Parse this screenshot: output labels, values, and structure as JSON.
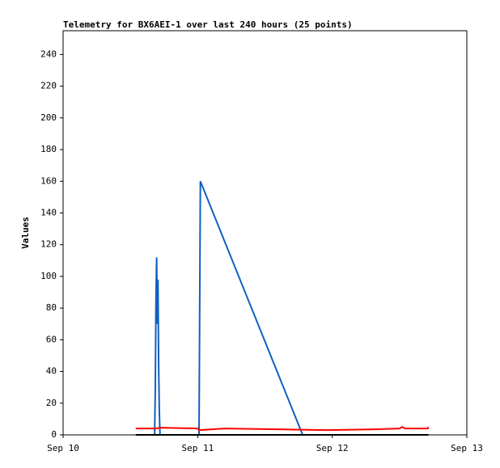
{
  "chart_data": {
    "type": "line",
    "title": "Telemetry for BX6AEI-1 over last 240 hours (25 points)",
    "y_label": "Values",
    "xlim": [
      0,
      3
    ],
    "xticks": [
      {
        "value": 0,
        "label": "Sep 10"
      },
      {
        "value": 1,
        "label": "Sep 11"
      },
      {
        "value": 2,
        "label": "Sep 12"
      },
      {
        "value": 3,
        "label": "Sep 13"
      }
    ],
    "ylim": [
      0,
      255
    ],
    "yticks": [
      0,
      20,
      40,
      60,
      80,
      100,
      120,
      140,
      160,
      180,
      200,
      220,
      240
    ],
    "grid": false,
    "series": [
      {
        "color": "#1060c0",
        "x": [
          0.68,
          0.685,
          0.69,
          0.695,
          0.7,
          0.705,
          0.71,
          0.715,
          0.72,
          1.0,
          1.01,
          1.02,
          1.78
        ],
        "values": [
          0,
          28,
          85,
          112,
          70,
          98,
          43,
          15,
          0,
          0,
          0,
          160,
          0
        ]
      },
      {
        "color": "#ff0000",
        "x": [
          0.54,
          0.69,
          0.72,
          1.0,
          1.01,
          1.2,
          1.6,
          1.96,
          2.32,
          2.5,
          2.52,
          2.54,
          2.71,
          2.715
        ],
        "values": [
          4,
          4,
          4.5,
          4,
          3,
          4,
          3.5,
          3,
          3.5,
          4,
          5,
          4,
          4,
          5
        ]
      },
      {
        "color": "#000000",
        "x": [
          0.54,
          2.715
        ],
        "values": [
          0,
          0
        ]
      }
    ]
  }
}
